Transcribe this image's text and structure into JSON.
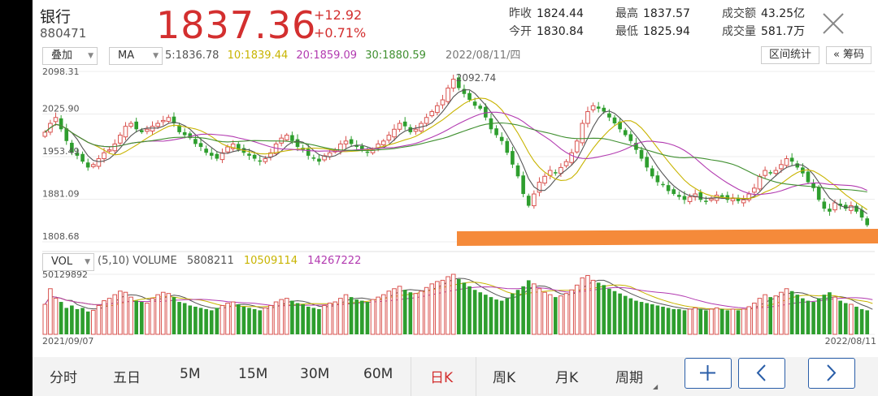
{
  "header": {
    "name": "银行",
    "code": "880471",
    "price": "1837.36",
    "change": "+12.92",
    "change_pct": "+0.71%",
    "stats": [
      {
        "label": "昨收",
        "value": "1824.44"
      },
      {
        "label": "今开",
        "value": "1830.84"
      },
      {
        "label": "最高",
        "value": "1837.57"
      },
      {
        "label": "最低",
        "value": "1825.94"
      },
      {
        "label": "成交额",
        "value": "43.25亿"
      },
      {
        "label": "成交量",
        "value": "581.7万"
      }
    ]
  },
  "toolbar": {
    "overlay": "叠加",
    "indicator": "MA",
    "ma": [
      {
        "text": "5:1836.78",
        "color": "#555555"
      },
      {
        "text": "10:1839.44",
        "color": "#c8b400"
      },
      {
        "text": "20:1859.09",
        "color": "#b23ab0"
      },
      {
        "text": "30:1880.59",
        "color": "#3f8f2f"
      }
    ],
    "date": "2022/08/11/四",
    "interval_stats": "区间统计",
    "chips": "« 筹码"
  },
  "volume_bar": {
    "indicator": "VOL",
    "params": "(5,10) VOLUME",
    "values": [
      {
        "text": "5808211",
        "color": "#555555"
      },
      {
        "text": "10509114",
        "color": "#c8b400"
      },
      {
        "text": "14267222",
        "color": "#b23ab0"
      }
    ]
  },
  "chart_data": {
    "type": "candlestick",
    "y_ticks": [
      "2098.31",
      "2025.90",
      "1953.49",
      "1881.09",
      "1808.68"
    ],
    "ylim": [
      1808.68,
      2098.31
    ],
    "max_label": "2092.74",
    "vol_max_label": "50129892",
    "x_start": "2021/09/07",
    "x_end": "2022/08/11",
    "close_series": [
      1995,
      2010,
      2020,
      2000,
      1980,
      1960,
      1955,
      1945,
      1935,
      1940,
      1950,
      1960,
      1965,
      1975,
      1990,
      2005,
      2010,
      2000,
      1995,
      2000,
      2005,
      2010,
      2015,
      2020,
      2010,
      1995,
      1990,
      1985,
      1975,
      1970,
      1960,
      1955,
      1950,
      1960,
      1970,
      1975,
      1965,
      1960,
      1955,
      1950,
      1945,
      1950,
      1960,
      1975,
      1985,
      1990,
      1980,
      1970,
      1965,
      1955,
      1950,
      1945,
      1955,
      1960,
      1965,
      1975,
      1980,
      1975,
      1970,
      1965,
      1960,
      1965,
      1975,
      1980,
      1990,
      2000,
      2010,
      2005,
      1995,
      2000,
      2010,
      2020,
      2030,
      2040,
      2050,
      2070,
      2085,
      2070,
      2060,
      2050,
      2040,
      2035,
      2020,
      2000,
      1990,
      1980,
      1960,
      1940,
      1920,
      1890,
      1870,
      1890,
      1910,
      1920,
      1930,
      1925,
      1935,
      1945,
      1960,
      1980,
      2010,
      2030,
      2040,
      2035,
      2030,
      2020,
      2010,
      2000,
      1990,
      1980,
      1965,
      1950,
      1935,
      1920,
      1910,
      1905,
      1895,
      1890,
      1885,
      1880,
      1885,
      1890,
      1880,
      1878,
      1882,
      1888,
      1885,
      1880,
      1882,
      1878,
      1880,
      1890,
      1900,
      1920,
      1930,
      1925,
      1930,
      1940,
      1950,
      1945,
      1935,
      1925,
      1910,
      1900,
      1880,
      1865,
      1860,
      1875,
      1870,
      1865,
      1870,
      1860,
      1850,
      1837
    ],
    "vol_series": [
      25,
      38,
      30,
      27,
      22,
      24,
      21,
      22,
      19,
      20,
      24,
      28,
      30,
      33,
      36,
      35,
      31,
      28,
      27,
      26,
      30,
      33,
      35,
      34,
      31,
      27,
      26,
      24,
      23,
      22,
      21,
      20,
      22,
      24,
      26,
      27,
      25,
      23,
      22,
      21,
      20,
      22,
      24,
      27,
      29,
      30,
      28,
      26,
      25,
      23,
      22,
      21,
      24,
      26,
      27,
      30,
      33,
      31,
      29,
      28,
      27,
      29,
      31,
      33,
      36,
      38,
      40,
      37,
      35,
      34,
      36,
      39,
      42,
      44,
      45,
      48,
      50,
      46,
      43,
      40,
      37,
      35,
      33,
      31,
      29,
      28,
      30,
      34,
      37,
      40,
      45,
      42,
      38,
      35,
      33,
      31,
      32,
      34,
      37,
      41,
      47,
      49,
      45,
      43,
      41,
      38,
      36,
      34,
      32,
      30,
      28,
      27,
      26,
      25,
      24,
      23,
      22,
      21,
      21,
      20,
      21,
      22,
      21,
      20,
      21,
      22,
      21,
      20,
      21,
      20,
      21,
      23,
      26,
      30,
      33,
      31,
      32,
      35,
      38,
      36,
      33,
      30,
      28,
      27,
      30,
      33,
      35,
      31,
      28,
      26,
      25,
      23,
      21,
      20,
      15
    ]
  },
  "periods": [
    "分时",
    "五日",
    "5M",
    "15M",
    "30M",
    "60M",
    "日K",
    "周K",
    "月K",
    "周期"
  ],
  "active_period": "日K",
  "colors": {
    "up": "#d9534f",
    "down": "#2e9e2e",
    "accent": "#d32f2f",
    "support_line": "#f58a3a",
    "nav_border": "#2a5ea8"
  }
}
